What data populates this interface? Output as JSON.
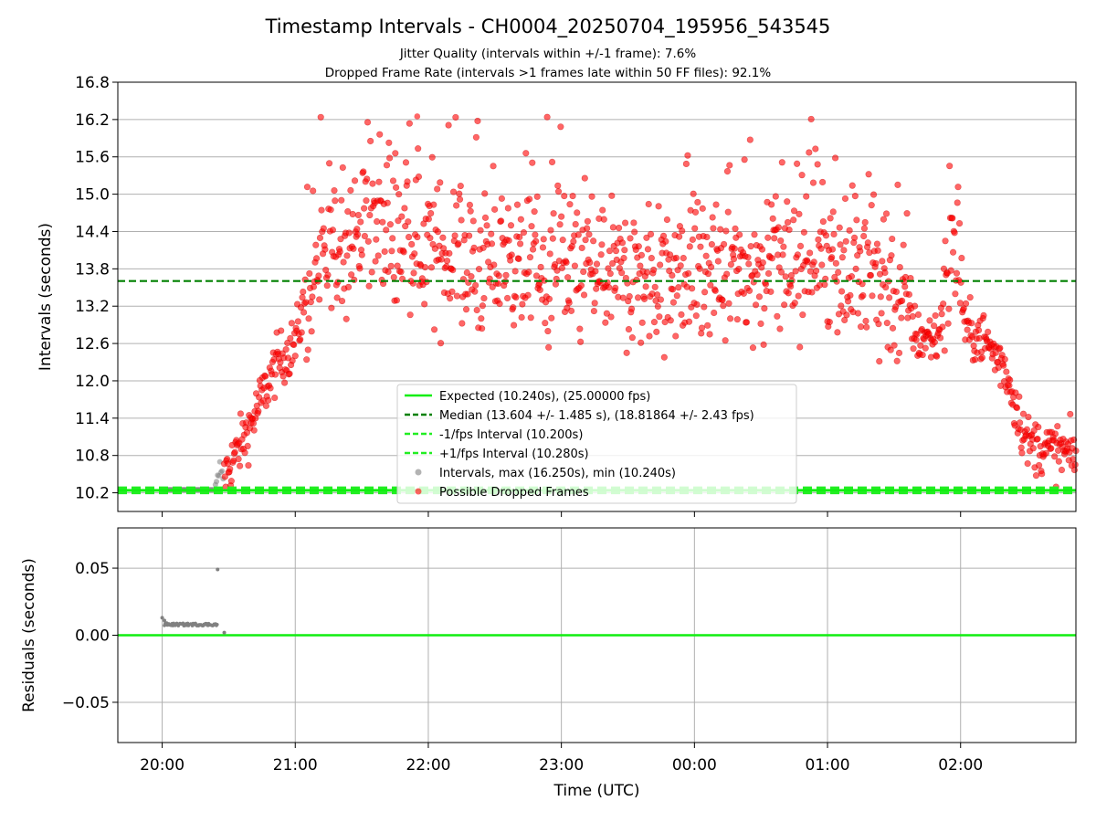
{
  "title": "Timestamp Intervals - CH0004_20250704_195956_543545",
  "subtitle_line1": "Jitter Quality (intervals within +/-1 frame): 7.6%",
  "subtitle_line2": "Dropped Frame Rate (intervals >1 frames late within 50 FF files): 92.1%",
  "colors": {
    "expected": "#11ee11",
    "median": "#008000",
    "fps_band": "#22ee22",
    "gray_points": "#808080",
    "red_points": "#ff0000",
    "grid": "#b0b0b0"
  },
  "chart_data": [
    {
      "type": "scatter",
      "panel": "top",
      "ylabel": "Intervals (seconds)",
      "ylim": [
        9.9,
        16.8
      ],
      "yticks": [
        "10.2",
        "10.8",
        "11.4",
        "12.0",
        "12.6",
        "13.2",
        "13.8",
        "14.4",
        "15.0",
        "15.6",
        "16.2",
        "16.8"
      ],
      "x_time_range": [
        "19:40",
        "02:52"
      ],
      "grid": "y",
      "legend_location": "lower-center",
      "lines": [
        {
          "name": "Expected (10.240s), (25.00000 fps)",
          "y": 10.24,
          "style": "solid"
        },
        {
          "name": "Median (13.604 +/- 1.485 s), (18.81864 +/- 2.43 fps)",
          "y": 13.604,
          "style": "dashed"
        },
        {
          "name": "-1/fps Interval (10.200s)",
          "y": 10.2,
          "style": "dashed"
        },
        {
          "name": "+1/fps Interval (10.280s)",
          "y": 10.28,
          "style": "dashed"
        }
      ],
      "series": [
        {
          "name": "Intervals, max (16.250s), min (10.240s)",
          "points": [
            [
              "20:00",
              10.25
            ],
            [
              "20:05",
              10.25
            ],
            [
              "20:10",
              10.25
            ],
            [
              "20:15",
              10.25
            ],
            [
              "20:20",
              10.25
            ],
            [
              "20:24",
              10.25
            ],
            [
              "20:25",
              10.4
            ],
            [
              "20:26",
              10.6
            ],
            [
              "20:27",
              10.55
            ],
            [
              "20:28",
              10.3
            ]
          ]
        },
        {
          "name": "Possible Dropped Frames",
          "profile": [
            [
              "20:28",
              10.5
            ],
            [
              "20:33",
              10.8
            ],
            [
              "20:40",
              11.3
            ],
            [
              "20:47",
              11.9
            ],
            [
              "20:52",
              12.3
            ],
            [
              "21:00",
              12.6
            ],
            [
              "21:05",
              13.4
            ],
            [
              "21:15",
              14.0
            ],
            [
              "21:30",
              14.4
            ],
            [
              "22:00",
              14.1
            ],
            [
              "22:30",
              13.8
            ],
            [
              "23:00",
              13.7
            ],
            [
              "23:30",
              13.6
            ],
            [
              "00:00",
              13.7
            ],
            [
              "00:30",
              13.8
            ],
            [
              "01:00",
              14.0
            ],
            [
              "01:15",
              13.6
            ],
            [
              "01:35",
              13.4
            ],
            [
              "01:40",
              12.7
            ],
            [
              "01:50",
              12.7
            ],
            [
              "01:55",
              13.8
            ],
            [
              "02:00",
              13.8
            ],
            [
              "02:02",
              12.8
            ],
            [
              "02:10",
              12.7
            ],
            [
              "02:20",
              12.2
            ],
            [
              "02:25",
              11.6
            ],
            [
              "02:30",
              11.0
            ],
            [
              "02:40",
              10.9
            ],
            [
              "02:52",
              10.8
            ]
          ],
          "max": 16.25
        }
      ]
    },
    {
      "type": "scatter",
      "panel": "bottom",
      "xlabel": "Time (UTC)",
      "ylabel": "Residuals (seconds)",
      "ylim": [
        -0.08,
        0.08
      ],
      "yticks": [
        "−0.05",
        "0.00",
        "0.05"
      ],
      "xticks": [
        "20:00",
        "21:00",
        "22:00",
        "23:00",
        "00:00",
        "01:00",
        "02:00"
      ],
      "grid": "both",
      "zero_line": 0.0,
      "points": [
        [
          "20:00",
          0.013
        ],
        [
          "20:01",
          0.011
        ],
        [
          "20:02",
          0.009
        ],
        [
          "20:05",
          0.008
        ],
        [
          "20:10",
          0.008
        ],
        [
          "20:15",
          0.008
        ],
        [
          "20:20",
          0.008
        ],
        [
          "20:24",
          0.008
        ],
        [
          "20:25",
          0.049
        ],
        [
          "20:28",
          0.002
        ]
      ]
    }
  ]
}
